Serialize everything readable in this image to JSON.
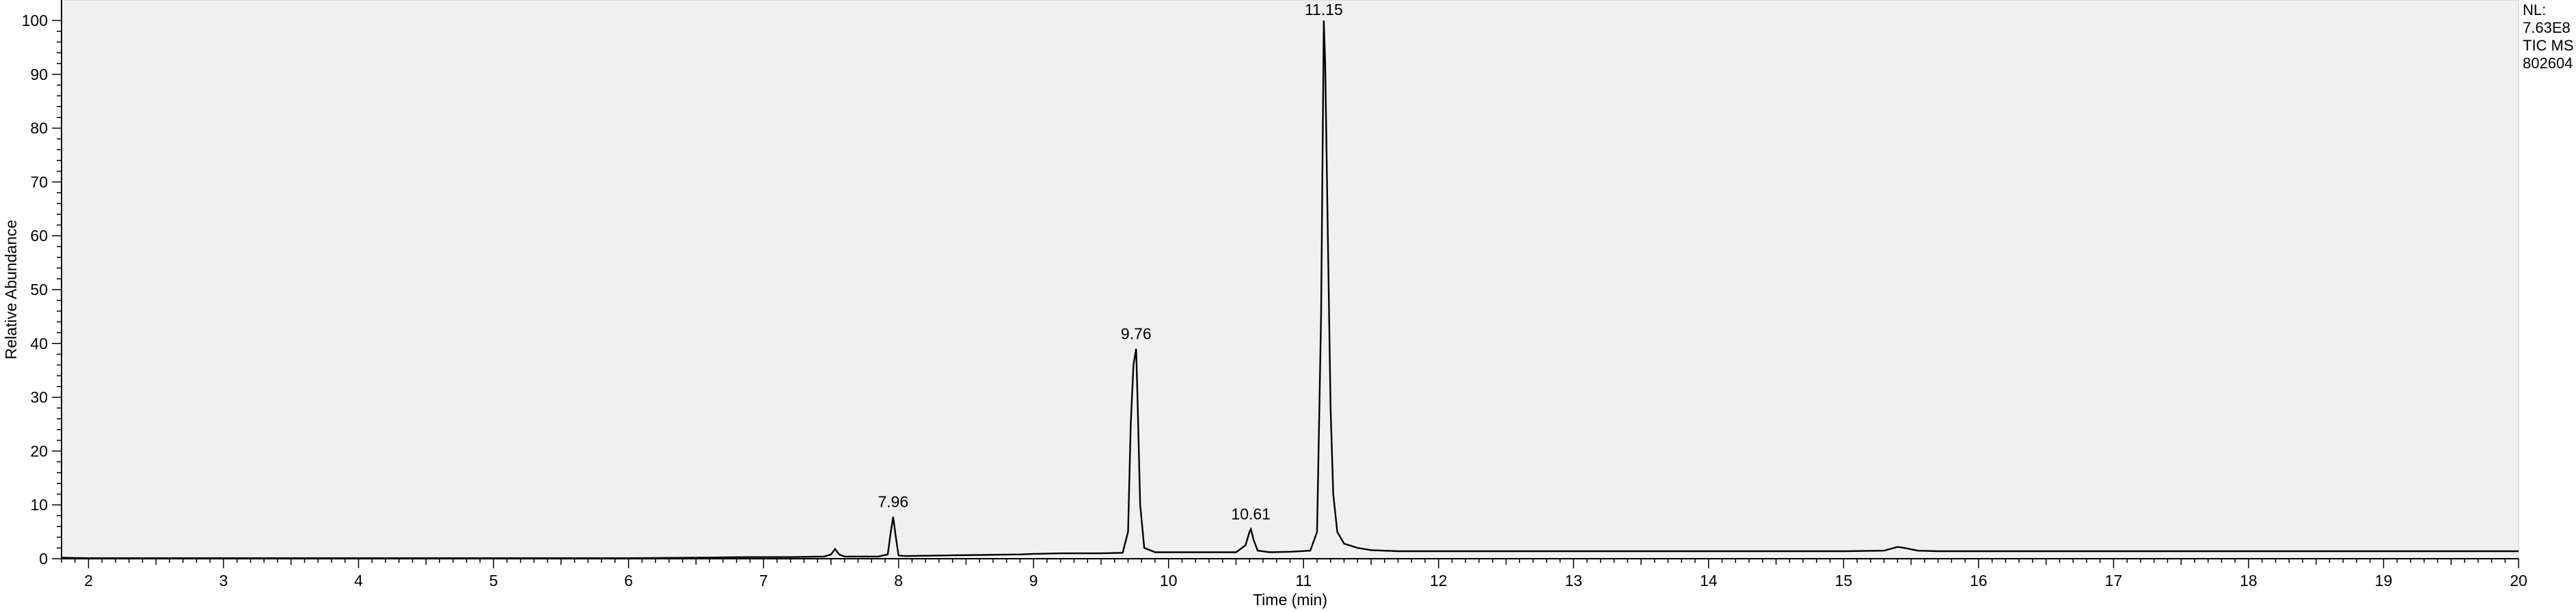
{
  "chart_data": {
    "type": "line",
    "title": "",
    "xlabel": "Time (min)",
    "ylabel": "Relative Abundance",
    "xlim": [
      1.8,
      20
    ],
    "ylim": [
      0,
      100
    ],
    "x_ticks": [
      2,
      3,
      4,
      5,
      6,
      7,
      8,
      9,
      10,
      11,
      12,
      13,
      14,
      15,
      16,
      17,
      18,
      19,
      20
    ],
    "y_ticks": [
      0,
      10,
      20,
      30,
      40,
      50,
      60,
      70,
      80,
      90,
      100
    ],
    "grid": false,
    "colors": {
      "plot_background": "#f0f0f0",
      "trace": "#000000"
    },
    "info_lines": [
      "NL:",
      "7.63E8",
      "TIC  MS",
      "802604"
    ],
    "peaks": [
      {
        "x": 7.96,
        "y": 7.8,
        "label": "7.96"
      },
      {
        "x": 9.76,
        "y": 39.0,
        "label": "9.76"
      },
      {
        "x": 10.61,
        "y": 5.5,
        "label": "10.61"
      },
      {
        "x": 11.15,
        "y": 100,
        "label": "11.15"
      }
    ],
    "series": [
      {
        "x": [
          1.8,
          2.0,
          3.0,
          4.0,
          5.0,
          6.0,
          6.5,
          6.9,
          7.2,
          7.45,
          7.5,
          7.53,
          7.56,
          7.6,
          7.85,
          7.92,
          7.94,
          7.96,
          7.98,
          8.0,
          8.05,
          8.3,
          8.6,
          8.9,
          9.0,
          9.2,
          9.5,
          9.66,
          9.7,
          9.72,
          9.74,
          9.76,
          9.77,
          9.79,
          9.82,
          9.9,
          10.2,
          10.5,
          10.57,
          10.6,
          10.61,
          10.63,
          10.66,
          10.75,
          10.9,
          11.05,
          11.1,
          11.13,
          11.15,
          11.16,
          11.18,
          11.2,
          11.22,
          11.25,
          11.3,
          11.4,
          11.5,
          11.7,
          12.0,
          13.0,
          14.0,
          15.0,
          15.3,
          15.4,
          15.45,
          15.55,
          15.7,
          16.0,
          17.0,
          18.0,
          19.0,
          20.0
        ],
        "y": [
          0.2,
          0.1,
          0.1,
          0.1,
          0.1,
          0.1,
          0.2,
          0.3,
          0.3,
          0.4,
          0.8,
          1.8,
          0.8,
          0.4,
          0.4,
          0.8,
          4.5,
          7.8,
          4.0,
          0.6,
          0.5,
          0.6,
          0.7,
          0.8,
          0.9,
          1.0,
          1.0,
          1.1,
          5.0,
          25.0,
          36.0,
          39.0,
          30.0,
          10.0,
          2.0,
          1.2,
          1.2,
          1.2,
          2.5,
          5.0,
          5.5,
          3.5,
          1.5,
          1.2,
          1.3,
          1.5,
          5.0,
          45.0,
          100,
          92.0,
          60.0,
          28.0,
          12.0,
          5.0,
          2.8,
          2.0,
          1.6,
          1.4,
          1.4,
          1.4,
          1.4,
          1.4,
          1.5,
          2.2,
          2.0,
          1.5,
          1.4,
          1.4,
          1.4,
          1.4,
          1.4,
          1.4
        ]
      }
    ]
  }
}
